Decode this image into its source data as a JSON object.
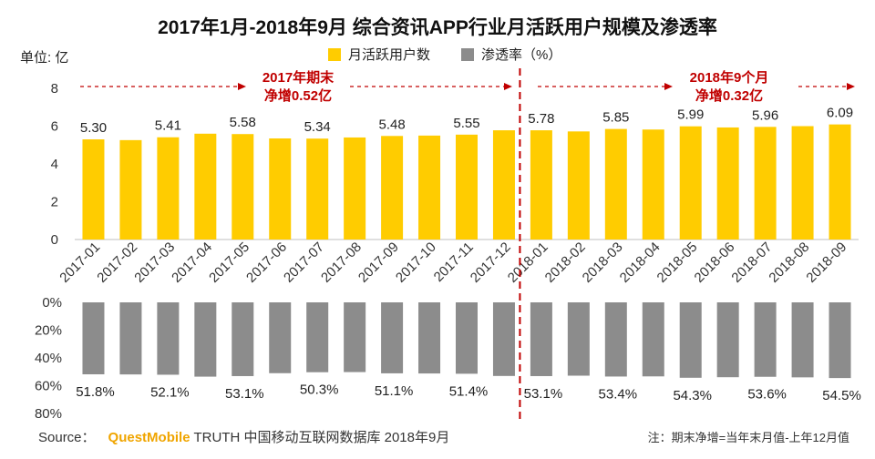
{
  "title": "2017年1月-2018年9月 综合资讯APP行业月活跃用户规模及渗透率",
  "unit_label": "单位: 亿",
  "legend": [
    {
      "label": "月活跃用户数",
      "color": "#ffcc00"
    },
    {
      "label": "渗透率（%）",
      "color": "#8c8c8c"
    }
  ],
  "annotations": {
    "left": {
      "line1": "2017年期末",
      "line2": "净增0.52亿"
    },
    "right": {
      "line1": "2018年9个月",
      "line2": "净增0.32亿"
    }
  },
  "footer": {
    "source_prefix": "Source：",
    "brand": "QuestMobile",
    "source_rest": "TRUTH 中国移动互联网数据库 2018年9月",
    "note": "注：期末净增=当年末月值-上年12月值"
  },
  "chart_data": [
    {
      "type": "bar",
      "title": "",
      "categories": [
        "2017-01",
        "2017-02",
        "2017-03",
        "2017-04",
        "2017-05",
        "2017-06",
        "2017-07",
        "2017-08",
        "2017-09",
        "2017-10",
        "2017-11",
        "2017-12",
        "2018-01",
        "2018-02",
        "2018-03",
        "2018-04",
        "2018-05",
        "2018-06",
        "2018-07",
        "2018-08",
        "2018-09"
      ],
      "series": [
        {
          "name": "月活跃用户数",
          "values": [
            5.3,
            5.26,
            5.41,
            5.6,
            5.58,
            5.35,
            5.34,
            5.4,
            5.48,
            5.5,
            5.55,
            5.78,
            5.78,
            5.72,
            5.85,
            5.82,
            5.99,
            5.93,
            5.96,
            6.0,
            6.09
          ]
        }
      ],
      "data_labels": [
        "5.30",
        "",
        "5.41",
        "",
        "5.58",
        "",
        "5.34",
        "",
        "5.48",
        "",
        "5.55",
        "",
        "5.78",
        "",
        "5.85",
        "",
        "5.99",
        "",
        "5.96",
        "",
        "6.09"
      ],
      "ylim": [
        0,
        8
      ],
      "yticks": [
        "0",
        "2",
        "4",
        "6",
        "8"
      ],
      "color": "#ffcc00"
    },
    {
      "type": "bar",
      "title": "",
      "categories": [
        "2017-01",
        "2017-02",
        "2017-03",
        "2017-04",
        "2017-05",
        "2017-06",
        "2017-07",
        "2017-08",
        "2017-09",
        "2017-10",
        "2017-11",
        "2017-12",
        "2018-01",
        "2018-02",
        "2018-03",
        "2018-04",
        "2018-05",
        "2018-06",
        "2018-07",
        "2018-08",
        "2018-09"
      ],
      "series": [
        {
          "name": "渗透率（%）",
          "values": [
            51.8,
            51.9,
            52.1,
            53.5,
            53.1,
            51.0,
            50.3,
            50.2,
            51.1,
            51.2,
            51.4,
            53.0,
            53.1,
            52.8,
            53.4,
            53.3,
            54.3,
            53.9,
            53.6,
            54.0,
            54.5
          ]
        }
      ],
      "data_labels": [
        "51.8%",
        "",
        "52.1%",
        "",
        "53.1%",
        "",
        "50.3%",
        "",
        "51.1%",
        "",
        "51.4%",
        "",
        "53.1%",
        "",
        "53.4%",
        "",
        "54.3%",
        "",
        "53.6%",
        "",
        "54.5%"
      ],
      "ylim": [
        0,
        80
      ],
      "inverted": true,
      "yticks": [
        "0%",
        "20%",
        "40%",
        "60%",
        "80%"
      ],
      "color": "#8c8c8c"
    }
  ]
}
